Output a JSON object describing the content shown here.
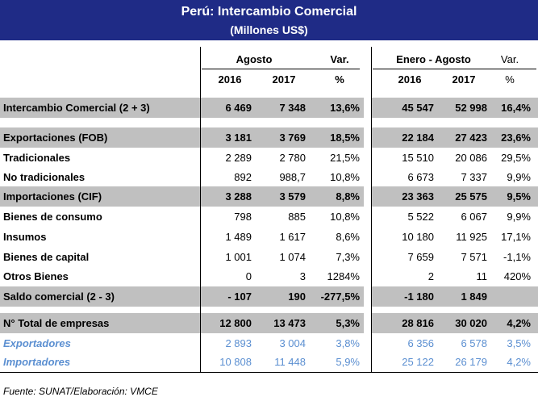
{
  "title": "Perú: Intercambio Comercial",
  "subtitle": "(Millones US$)",
  "headers": {
    "period1": "Agosto",
    "period2": "Enero - Agosto",
    "var": "Var.",
    "year1": "2016",
    "year2": "2017",
    "pct": "%"
  },
  "rows": [
    {
      "label": "Intercambio Comercial (2 + 3)",
      "a16": "6 469",
      "a17": "7 348",
      "av": "13,6%",
      "e16": "45 547",
      "e17": "52 998",
      "ev": "16,4%"
    },
    {
      "label": "Exportaciones (FOB)",
      "a16": "3 181",
      "a17": "3 769",
      "av": "18,5%",
      "e16": "22 184",
      "e17": "27 423",
      "ev": "23,6%"
    },
    {
      "label": "Tradicionales",
      "a16": "2 289",
      "a17": "2 780",
      "av": "21,5%",
      "e16": "15 510",
      "e17": "20 086",
      "ev": "29,5%"
    },
    {
      "label": "No tradicionales",
      "a16": "892",
      "a17": "988,7",
      "av": "10,8%",
      "e16": "6 673",
      "e17": "7 337",
      "ev": "9,9%"
    },
    {
      "label": "Importaciones (CIF)",
      "a16": "3 288",
      "a17": "3 579",
      "av": "8,8%",
      "e16": "23 363",
      "e17": "25 575",
      "ev": "9,5%"
    },
    {
      "label": "Bienes de consumo",
      "a16": "798",
      "a17": "885",
      "av": "10,8%",
      "e16": "5 522",
      "e17": "6 067",
      "ev": "9,9%"
    },
    {
      "label": "Insumos",
      "a16": "1 489",
      "a17": "1 617",
      "av": "8,6%",
      "e16": "10 180",
      "e17": "11 925",
      "ev": "17,1%"
    },
    {
      "label": "Bienes de capital",
      "a16": "1 001",
      "a17": "1 074",
      "av": "7,3%",
      "e16": "7 659",
      "e17": "7 571",
      "ev": "-1,1%"
    },
    {
      "label": "Otros Bienes",
      "a16": "0",
      "a17": "3",
      "av": "1284%",
      "e16": "2",
      "e17": "11",
      "ev": "420%"
    },
    {
      "label": "Saldo comercial (2 - 3)",
      "a16": "- 107",
      "a17": "190",
      "av": "-277,5%",
      "e16": "-1 180",
      "e17": "1 849",
      "ev": ""
    },
    {
      "label": "N° Total de empresas",
      "a16": "12 800",
      "a17": "13 473",
      "av": "5,3%",
      "e16": "28 816",
      "e17": "30 020",
      "ev": "4,2%"
    },
    {
      "label": "Exportadores",
      "a16": "2 893",
      "a17": "3 004",
      "av": "3,8%",
      "e16": "6 356",
      "e17": "6 578",
      "ev": "3,5%"
    },
    {
      "label": "Importadores",
      "a16": "10 808",
      "a17": "11 448",
      "av": "5,9%",
      "e16": "25 122",
      "e17": "26 179",
      "ev": "4,2%"
    }
  ],
  "footer": "Fuente: SUNAT/Elaboración: VMCE",
  "colors": {
    "title_bg": "#1f2b86",
    "band": "#c0c0c0",
    "blue_text": "#5b8fd1"
  }
}
